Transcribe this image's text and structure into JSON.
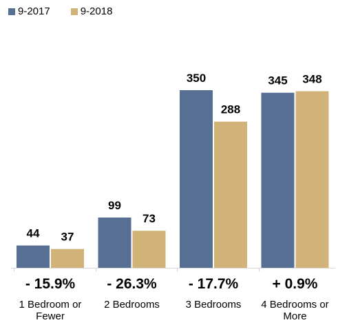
{
  "chart_data": {
    "type": "bar",
    "categories": [
      [
        "1 Bedroom or",
        "Fewer"
      ],
      [
        "2 Bedrooms"
      ],
      [
        "3 Bedrooms"
      ],
      [
        "4 Bedrooms or",
        "More"
      ]
    ],
    "series": [
      {
        "name": "9-2017",
        "values": [
          44,
          99,
          350,
          345
        ],
        "color": "#576f92"
      },
      {
        "name": "9-2018",
        "values": [
          37,
          73,
          288,
          348
        ],
        "color": "#d1b37a"
      }
    ],
    "changes": [
      "- 15.9%",
      "- 26.3%",
      "- 17.7%",
      "+ 0.9%"
    ],
    "ylim": [
      0,
      360
    ],
    "legend_position": "top-left",
    "grid": false
  }
}
